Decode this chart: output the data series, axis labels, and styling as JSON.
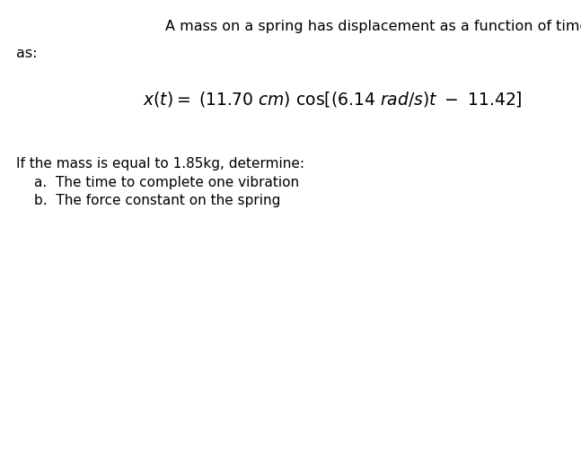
{
  "background_color": "#ffffff",
  "title_line1": "A mass on a spring has displacement as a function of time",
  "title_line2": "as:",
  "body_line1": "If the mass is equal to 1.85kg, determine:",
  "body_line2": "a.  The time to complete one vibration",
  "body_line3": "b.  The force constant on the spring",
  "title_fontsize": 11.5,
  "eq_fontsize": 13.5,
  "body_fontsize": 11.0,
  "text_color": "#000000",
  "fig_width": 6.47,
  "fig_height": 5.17,
  "dpi": 100
}
